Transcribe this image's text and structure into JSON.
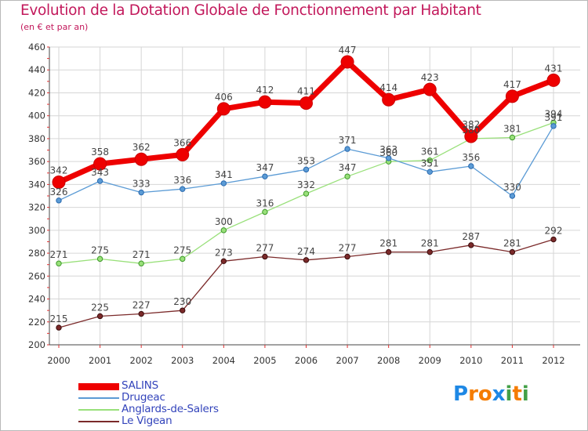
{
  "header": {
    "title": "Evolution de la Dotation Globale de Fonctionnement par Habitant",
    "subtitle": "(en € et par an)"
  },
  "logo": {
    "text": "Proxiti",
    "letters": [
      "P",
      "r",
      "o",
      "x",
      "i",
      "t",
      "i"
    ],
    "colors": [
      "#1e88e5",
      "#f57c00",
      "#f57c00",
      "#1e88e5",
      "#43a047",
      "#f57c00",
      "#43a047"
    ]
  },
  "chart_data": {
    "type": "line",
    "title": "Evolution de la Dotation Globale de Fonctionnement par Habitant",
    "subtitle": "(en € et par an)",
    "x": [
      "2000",
      "2001",
      "2002",
      "2003",
      "2004",
      "2005",
      "2006",
      "2007",
      "2008",
      "2009",
      "2010",
      "2011",
      "2012"
    ],
    "ylim": [
      200,
      460
    ],
    "yticks": [
      200,
      220,
      240,
      260,
      280,
      300,
      320,
      340,
      360,
      380,
      400,
      420,
      440,
      460
    ],
    "grid": true,
    "legend_position": "bottom-left",
    "series": [
      {
        "name": "SALINS",
        "color": "#ee0000",
        "values": [
          342,
          358,
          362,
          366,
          406,
          412,
          411,
          447,
          414,
          423,
          382,
          417,
          431
        ]
      },
      {
        "name": "Drugeac",
        "color": "#5b9bd5",
        "values": [
          326,
          343,
          333,
          336,
          341,
          347,
          353,
          371,
          363,
          351,
          356,
          330,
          391
        ]
      },
      {
        "name": "Anglards-de-Salers",
        "color": "#99e07a",
        "values": [
          271,
          275,
          271,
          275,
          300,
          316,
          332,
          347,
          360,
          361,
          380,
          381,
          394
        ]
      },
      {
        "name": "Le Vigean",
        "color": "#7b2a2a",
        "values": [
          215,
          225,
          227,
          230,
          273,
          277,
          274,
          277,
          281,
          281,
          287,
          281,
          292
        ]
      }
    ]
  }
}
